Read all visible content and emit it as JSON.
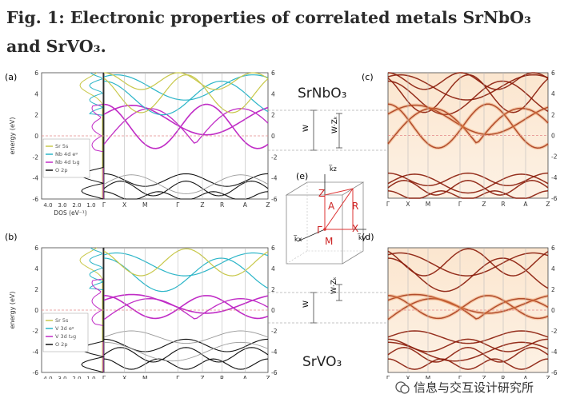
{
  "title": "Fig. 1: Electronic properties of correlated metals SrNbO₃ and SrVO₃.",
  "panels": {
    "a": "(a)",
    "b": "(b)",
    "c": "(c)",
    "d": "(d)",
    "e": "(e)"
  },
  "materials": {
    "top": "SrNbO₃",
    "bottom": "SrVO₃"
  },
  "axis": {
    "ylabel": "energy (eV)",
    "yticks": [
      "6",
      "4",
      "2",
      "0",
      "-2",
      "-4",
      "-6"
    ],
    "kpath": [
      "Γ",
      "X",
      "M",
      "Γ",
      "Z",
      "R",
      "A",
      "Z"
    ],
    "dos_ticks": [
      "4.0",
      "3.0",
      "2.0",
      "1.0"
    ],
    "dos_label": "DOS (eV⁻¹)"
  },
  "legend_top": [
    "Sr 5s",
    "Nb 4d eᵍ",
    "Nb 4d t₂g",
    "O 2p"
  ],
  "legend_bottom": [
    "Sr 5s",
    "V 3d eᵍ",
    "V 3d t₂g",
    "O 2p"
  ],
  "legend_colors": [
    "#c8c84a",
    "#2bb5c8",
    "#c02cc6",
    "#111111"
  ],
  "annot": {
    "w": "W",
    "wz": "W·Zₖ"
  },
  "bz_labels": {
    "kz": "k̅z",
    "kx": "k̅x",
    "ky": "k̅y",
    "Z": "Z",
    "A": "A",
    "R": "R",
    "X": "X",
    "M": "M",
    "G": "Γ"
  },
  "watermark": "信息与交互设计研究所"
}
